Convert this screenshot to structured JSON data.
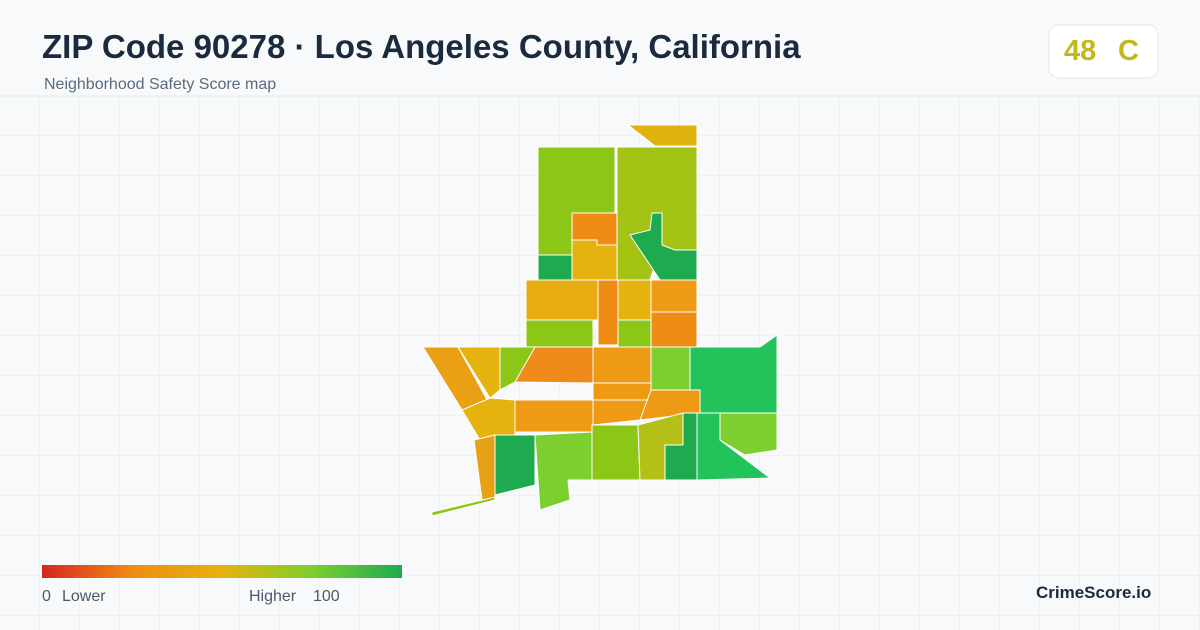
{
  "header": {
    "title": "ZIP Code 90278 · Los Angeles County, California",
    "subtitle": "Neighborhood Safety Score map"
  },
  "score": {
    "value": "48",
    "grade": "C"
  },
  "legend": {
    "min": "0",
    "min_label": "Lower",
    "max_label": "Higher",
    "max": "100"
  },
  "brand": "CrimeScore.io"
}
